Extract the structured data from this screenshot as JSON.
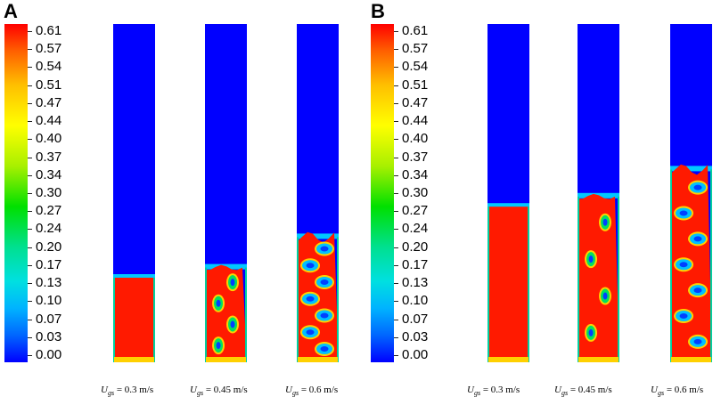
{
  "panels": [
    {
      "letter": "A",
      "colorbar_ticks": [
        "0.61",
        "0.57",
        "0.54",
        "0.51",
        "0.47",
        "0.44",
        "0.40",
        "0.37",
        "0.34",
        "0.30",
        "0.27",
        "0.24",
        "0.20",
        "0.17",
        "0.13",
        "0.10",
        "0.07",
        "0.03",
        "0.00"
      ],
      "columns": [
        {
          "u_symbol": "U",
          "u_sub": "gs",
          "value_text": " = 0.3 m/s",
          "bed_height_fraction": 0.25,
          "interface": "flat"
        },
        {
          "u_symbol": "U",
          "u_sub": "gs",
          "value_text": " = 0.45 m/s",
          "bed_height_fraction": 0.28,
          "interface": "wavy"
        },
        {
          "u_symbol": "U",
          "u_sub": "gs",
          "value_text": " = 0.6 m/s",
          "bed_height_fraction": 0.37,
          "interface": "bubbly"
        }
      ]
    },
    {
      "letter": "B",
      "colorbar_ticks": [
        "0.61",
        "0.57",
        "0.54",
        "0.51",
        "0.47",
        "0.44",
        "0.40",
        "0.37",
        "0.34",
        "0.30",
        "0.27",
        "0.24",
        "0.20",
        "0.17",
        "0.13",
        "0.10",
        "0.07",
        "0.03",
        "0.00"
      ],
      "columns": [
        {
          "u_symbol": "U",
          "u_sub": "gs",
          "value_text": " = 0.3 m/s",
          "bed_height_fraction": 0.46,
          "interface": "flat"
        },
        {
          "u_symbol": "U",
          "u_sub": "gs",
          "value_text": " = 0.45 m/s",
          "bed_height_fraction": 0.49,
          "interface": "wavy"
        },
        {
          "u_symbol": "U",
          "u_sub": "gs",
          "value_text": " = 0.6 m/s",
          "bed_height_fraction": 0.57,
          "interface": "bubbly"
        }
      ]
    }
  ],
  "colors": {
    "low": "#0000ff",
    "high": "#ff0000",
    "mid": "#ffff00",
    "green": "#00e000",
    "cyan": "#00c8ff"
  }
}
